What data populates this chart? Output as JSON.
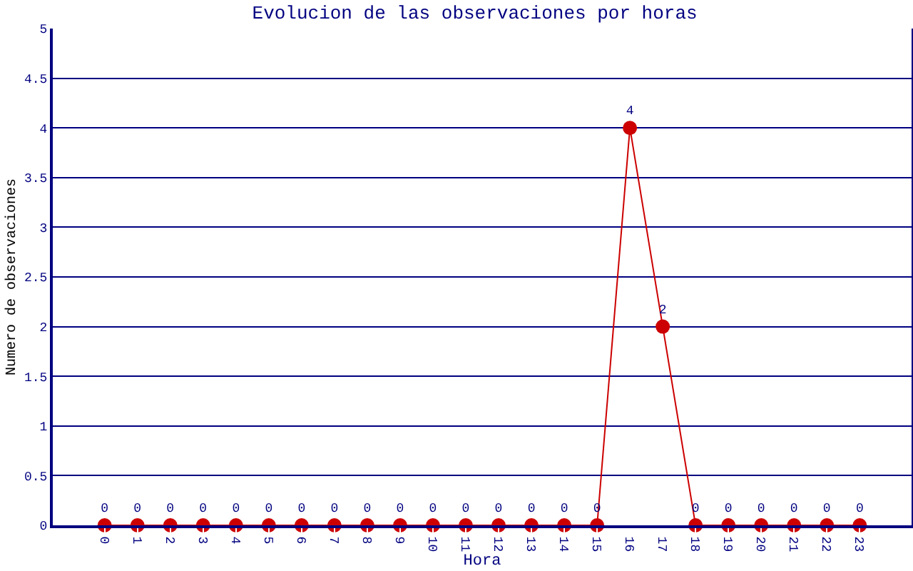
{
  "chart_data": {
    "type": "line",
    "title": "Evolucion de las observaciones por horas",
    "xlabel": "Hora",
    "ylabel": "Numero de observaciones",
    "categories": [
      "0",
      "1",
      "2",
      "3",
      "4",
      "5",
      "6",
      "7",
      "8",
      "9",
      "10",
      "11",
      "12",
      "13",
      "14",
      "15",
      "16",
      "17",
      "18",
      "19",
      "20",
      "21",
      "22",
      "23"
    ],
    "series": [
      {
        "color": "#cc0000",
        "values": [
          0,
          0,
          0,
          0,
          0,
          0,
          0,
          0,
          0,
          0,
          0,
          0,
          0,
          0,
          0,
          0,
          4,
          2,
          0,
          0,
          0,
          0,
          0,
          0
        ]
      }
    ],
    "ylim": [
      0,
      5
    ],
    "yticks": [
      0,
      0.5,
      1,
      1.5,
      2,
      2.5,
      3,
      3.5,
      4,
      4.5,
      5
    ],
    "grid": "y",
    "marker": "circle",
    "line_style": "solid",
    "data_labels": true
  }
}
